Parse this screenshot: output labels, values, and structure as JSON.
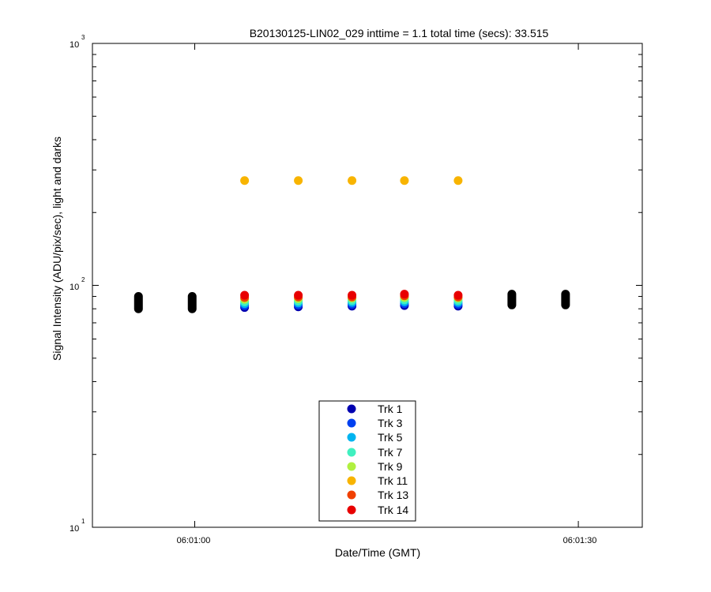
{
  "chart_data": {
    "type": "scatter",
    "title": "B20130125-LIN02_029 inttime = 1.1 total time (secs): 33.515",
    "xlabel": "Date/Time (GMT)",
    "ylabel": "Signal Intensity (ADU/pix/sec), light and darks",
    "yscale": "log",
    "xlim_seconds_after_06_00": [
      52,
      95
    ],
    "ylim": [
      10,
      1000
    ],
    "x_ticks": [
      {
        "value": 60,
        "label": "06:01:00"
      },
      {
        "value": 90,
        "label": "06:01:30"
      }
    ],
    "y_ticks": [
      {
        "value": 10,
        "base": "10",
        "exp": "1"
      },
      {
        "value": 100,
        "base": "10",
        "exp": "2"
      },
      {
        "value": 1000,
        "base": "10",
        "exp": "3"
      }
    ],
    "legend_location": "lower-center",
    "x_light": [
      63.9,
      68.1,
      72.3,
      76.4,
      80.6
    ],
    "series": [
      {
        "name": "Trk 1",
        "color": "#0000b0",
        "values": [
          81,
          81.5,
          82,
          82.5,
          82
        ]
      },
      {
        "name": "Trk 3",
        "color": "#0040f0",
        "values": [
          82.5,
          83,
          83.5,
          84,
          83.5
        ]
      },
      {
        "name": "Trk 5",
        "color": "#00b4f0",
        "values": [
          84,
          84.5,
          85,
          85.5,
          85
        ]
      },
      {
        "name": "Trk 7",
        "color": "#40f0c0",
        "values": [
          85.5,
          86,
          86.5,
          87,
          86.5
        ]
      },
      {
        "name": "Trk 9",
        "color": "#b0f040",
        "values": [
          87.5,
          88,
          88.5,
          89,
          88.5
        ]
      },
      {
        "name": "Trk 11",
        "color": "#f8b400",
        "values": [
          271,
          271,
          271,
          271,
          271
        ]
      },
      {
        "name": "Trk 13",
        "color": "#f04000",
        "values": [
          89,
          89.5,
          89.5,
          90.5,
          89.5
        ]
      },
      {
        "name": "Trk 14",
        "color": "#e80000",
        "values": [
          91,
          91,
          91,
          92,
          91
        ]
      }
    ],
    "darks": {
      "name": "darks",
      "color": "#000000",
      "x": [
        55.6,
        59.8,
        84.8,
        89.0
      ],
      "ranges": [
        [
          80,
          90
        ],
        [
          80,
          90
        ],
        [
          83,
          92
        ],
        [
          83,
          92
        ]
      ]
    }
  }
}
